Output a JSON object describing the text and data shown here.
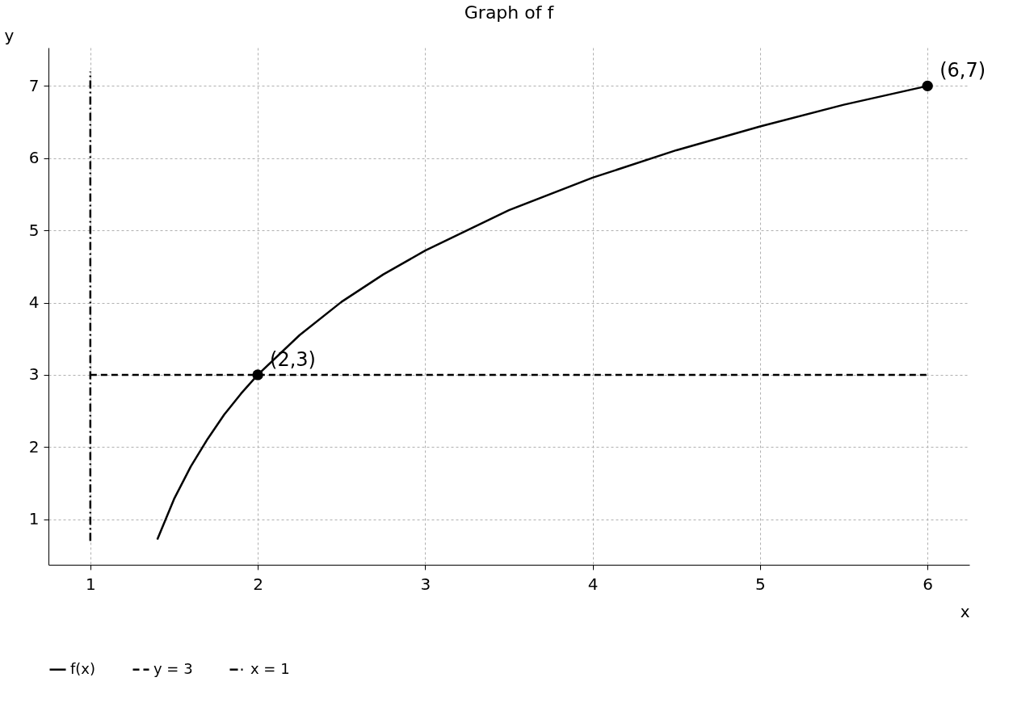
{
  "chart_data": {
    "type": "line",
    "title": "Graph of f",
    "xlabel": "x",
    "ylabel": "y",
    "xlim": [
      0.75,
      6.25
    ],
    "ylim": [
      0.37,
      7.53
    ],
    "xticks": [
      1,
      2,
      3,
      4,
      5,
      6
    ],
    "yticks": [
      1,
      2,
      3,
      4,
      5,
      6,
      7
    ],
    "grid": true,
    "legend": "bottom",
    "series": [
      {
        "name": "f(x)",
        "color": "#000000",
        "type": "line",
        "line_style": "solid",
        "x": [
          1.4,
          1.5,
          1.6,
          1.7,
          1.8,
          1.9,
          2,
          2.25,
          2.5,
          2.75,
          3,
          3.5,
          4,
          4.5,
          5,
          5.5,
          6
        ],
        "values": [
          0.72,
          1.28,
          1.73,
          2.11,
          2.45,
          2.74,
          3,
          3.55,
          4.01,
          4.39,
          4.72,
          5.28,
          5.73,
          6.11,
          6.44,
          6.74,
          7
        ]
      },
      {
        "name": "y = 3",
        "color": "#000000",
        "type": "line",
        "line_style": "dashed",
        "x": [
          1,
          6
        ],
        "values": [
          3,
          3
        ]
      },
      {
        "name": "x = 1",
        "color": "#000000",
        "type": "line",
        "line_style": "dashdot",
        "x": [
          1,
          1
        ],
        "values": [
          0.7,
          7.2
        ]
      },
      {
        "color": "#000000",
        "type": "scatter",
        "marker": "circle",
        "x": [
          2,
          6
        ],
        "values": [
          3,
          7
        ]
      }
    ],
    "annotations": [
      {
        "text": "(2,3)",
        "x": 2,
        "y": 3
      },
      {
        "text": "(6,7)",
        "x": 6,
        "y": 7
      }
    ]
  }
}
